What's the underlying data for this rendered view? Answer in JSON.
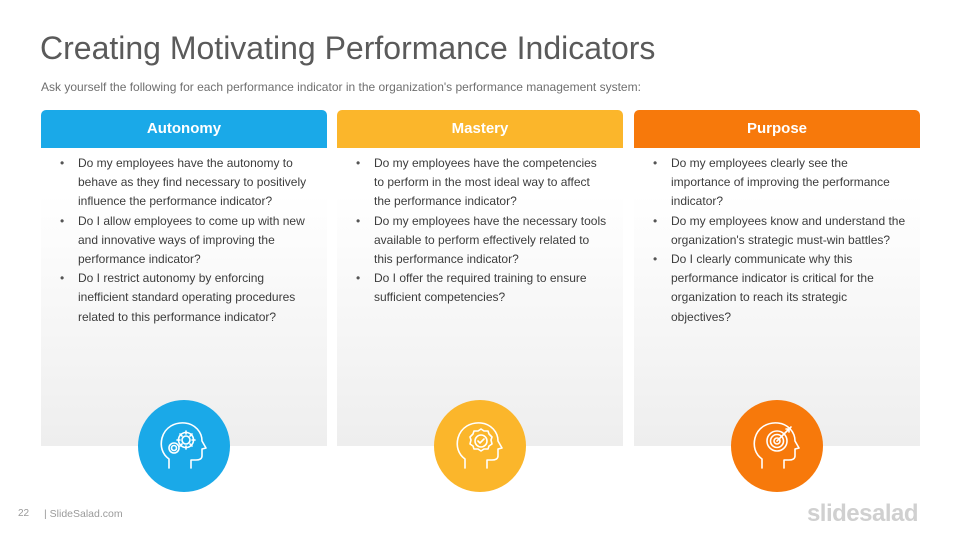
{
  "slide": {
    "title": "Creating Motivating Performance Indicators",
    "subtitle": "Ask yourself the following  for each performance  indicator in the organization's  performance  management  system:",
    "page_number": "22",
    "footer": "| SlideSalad.com",
    "brand": "slidesalad"
  },
  "cards": [
    {
      "title": "Autonomy",
      "color": "#1aa9e8",
      "icon": "head-gears-icon",
      "items": [
        "Do my employees have the autonomy to behave as they find necessary to positively influence the performance indicator?",
        "Do I allow employees to come up with new and innovative ways of improving the performance  indicator?",
        "Do I restrict autonomy by enforcing inefficient  standard operating procedures related to this performance  indicator?"
      ]
    },
    {
      "title": "Mastery",
      "color": "#fbb62b",
      "icon": "head-badge-check-icon",
      "items": [
        "Do my employees have the competencies to perform  in the most ideal way to affect the performance indicator?",
        "Do my employees have the necessary tools available to perform effectively related to this performance  indicator?",
        "Do I offer the required training to ensure sufficient  competencies?"
      ]
    },
    {
      "title": "Purpose",
      "color": "#f7790b",
      "icon": "head-target-icon",
      "items": [
        "Do my employees clearly see the importance of improving  the performance  indicator?",
        "Do my employees know and understand the organization's strategic must-win battles?",
        "Do I clearly communicate  why this performance  indicator is critical for the organization to reach its strategic objectives?"
      ]
    }
  ]
}
